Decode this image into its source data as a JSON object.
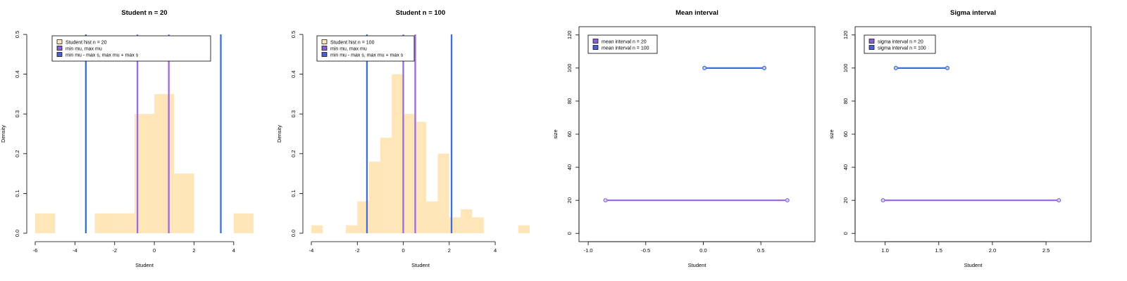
{
  "colors": {
    "hist": "#ffe6b9",
    "purple": "#9b6ddb",
    "blue": "#3f6fd6",
    "legend_blue": "#4b5fd0",
    "legend_purple": "#8a5fd0",
    "legend_hist": "#ffe6b9"
  },
  "chart_data": [
    {
      "type": "bar",
      "title": "Student  n =  20",
      "xlabel": "Student",
      "ylabel": "Density",
      "xlim": [
        -6,
        5
      ],
      "ylim": [
        0,
        0.5
      ],
      "xticks": [
        "-6",
        "-4",
        "-2",
        "0",
        "2",
        "4"
      ],
      "yticks": [
        "0.0",
        "0.1",
        "0.2",
        "0.3",
        "0.4",
        "0.5"
      ],
      "box": false,
      "bins": [
        {
          "x0": -6,
          "x1": -5,
          "density": 0.05
        },
        {
          "x0": -5,
          "x1": -4,
          "density": 0.0
        },
        {
          "x0": -4,
          "x1": -3,
          "density": 0.0
        },
        {
          "x0": -3,
          "x1": -2,
          "density": 0.05
        },
        {
          "x0": -2,
          "x1": -1,
          "density": 0.05
        },
        {
          "x0": -1,
          "x1": 0,
          "density": 0.3
        },
        {
          "x0": 0,
          "x1": 1,
          "density": 0.35
        },
        {
          "x0": 1,
          "x1": 2,
          "density": 0.15
        },
        {
          "x0": 2,
          "x1": 3,
          "density": 0.0
        },
        {
          "x0": 3,
          "x1": 4,
          "density": 0.0
        },
        {
          "x0": 4,
          "x1": 5,
          "density": 0.05
        }
      ],
      "vlines": [
        {
          "x": -0.85,
          "color": "purple"
        },
        {
          "x": 0.73,
          "color": "purple"
        },
        {
          "x": -3.45,
          "color": "blue"
        },
        {
          "x": 3.35,
          "color": "blue"
        }
      ],
      "legend": [
        {
          "label": "Student  hist n =  20",
          "color": "legend_hist"
        },
        {
          "label": "min mu, max mu",
          "color": "legend_purple"
        },
        {
          "label": "min mu - max s, max mu + max s",
          "color": "legend_blue"
        }
      ],
      "legend_position": "top-left"
    },
    {
      "type": "bar",
      "title": "Student  n =  100",
      "xlabel": "Student",
      "ylabel": "Density",
      "xlim": [
        -4,
        5.5
      ],
      "ylim": [
        0,
        0.5
      ],
      "xticks": [
        "-4",
        "-2",
        "0",
        "2",
        "4"
      ],
      "yticks": [
        "0.0",
        "0.1",
        "0.2",
        "0.3",
        "0.4",
        "0.5"
      ],
      "box": false,
      "bins": [
        {
          "x0": -4,
          "x1": -3.5,
          "density": 0.02
        },
        {
          "x0": -3.5,
          "x1": -3,
          "density": 0.0
        },
        {
          "x0": -3,
          "x1": -2.5,
          "density": 0.0
        },
        {
          "x0": -2.5,
          "x1": -2,
          "density": 0.02
        },
        {
          "x0": -2,
          "x1": -1.5,
          "density": 0.08
        },
        {
          "x0": -1.5,
          "x1": -1,
          "density": 0.18
        },
        {
          "x0": -1,
          "x1": -0.5,
          "density": 0.24
        },
        {
          "x0": -0.5,
          "x1": 0,
          "density": 0.4
        },
        {
          "x0": 0,
          "x1": 0.5,
          "density": 0.3
        },
        {
          "x0": 0.5,
          "x1": 1,
          "density": 0.28
        },
        {
          "x0": 1,
          "x1": 1.5,
          "density": 0.08
        },
        {
          "x0": 1.5,
          "x1": 2,
          "density": 0.2
        },
        {
          "x0": 2,
          "x1": 2.5,
          "density": 0.04
        },
        {
          "x0": 2.5,
          "x1": 3,
          "density": 0.06
        },
        {
          "x0": 3,
          "x1": 3.5,
          "density": 0.04
        },
        {
          "x0": 3.5,
          "x1": 4,
          "density": 0.0
        },
        {
          "x0": 4,
          "x1": 4.5,
          "density": 0.0
        },
        {
          "x0": 4.5,
          "x1": 5,
          "density": 0.0
        },
        {
          "x0": 5,
          "x1": 5.5,
          "density": 0.02
        }
      ],
      "vlines": [
        {
          "x": 0.0,
          "color": "purple"
        },
        {
          "x": 0.52,
          "color": "purple"
        },
        {
          "x": -1.58,
          "color": "blue"
        },
        {
          "x": 2.1,
          "color": "blue"
        }
      ],
      "legend": [
        {
          "label": "Student  hist n =  100",
          "color": "legend_hist"
        },
        {
          "label": "min mu, max mu",
          "color": "legend_purple"
        },
        {
          "label": "min mu - max s, max mu + max s",
          "color": "legend_blue"
        }
      ],
      "legend_position": "top-left"
    },
    {
      "type": "line",
      "title": "Mean interval",
      "xlabel": "Student",
      "ylabel": "size",
      "xlim": [
        -1.08,
        0.97
      ],
      "ylim": [
        -5,
        125
      ],
      "xticks": [
        "-1.0",
        "-0.5",
        "0.0",
        "0.5"
      ],
      "yticks": [
        "0",
        "20",
        "40",
        "60",
        "80",
        "100",
        "120"
      ],
      "box": true,
      "series": [
        {
          "name": "mean interval n =  20",
          "x": [
            -0.85,
            0.73
          ],
          "y": [
            20,
            20
          ],
          "color": "purple"
        },
        {
          "name": "mean interval n =  100",
          "x": [
            0.01,
            0.53
          ],
          "y": [
            100,
            100
          ],
          "color": "blue"
        }
      ],
      "legend": [
        {
          "label": "mean interval n =  20",
          "color": "legend_purple"
        },
        {
          "label": "mean interval n =  100",
          "color": "legend_blue"
        }
      ],
      "legend_position": "top-left"
    },
    {
      "type": "line",
      "title": "Sigma interval",
      "xlabel": "Student",
      "ylabel": "size",
      "xlim": [
        0.72,
        2.92
      ],
      "ylim": [
        -5,
        125
      ],
      "xticks": [
        "1.0",
        "1.5",
        "2.0",
        "2.5"
      ],
      "yticks": [
        "0",
        "20",
        "40",
        "60",
        "80",
        "100",
        "120"
      ],
      "box": true,
      "series": [
        {
          "name": "sigma interval n =  20",
          "x": [
            0.98,
            2.62
          ],
          "y": [
            20,
            20
          ],
          "color": "purple"
        },
        {
          "name": "sigma interval n =  100",
          "x": [
            1.1,
            1.58
          ],
          "y": [
            100,
            100
          ],
          "color": "blue"
        }
      ],
      "legend": [
        {
          "label": "sigma interval n =  20",
          "color": "legend_purple"
        },
        {
          "label": "sigma interval n =  100",
          "color": "legend_blue"
        }
      ],
      "legend_position": "top-left"
    }
  ]
}
